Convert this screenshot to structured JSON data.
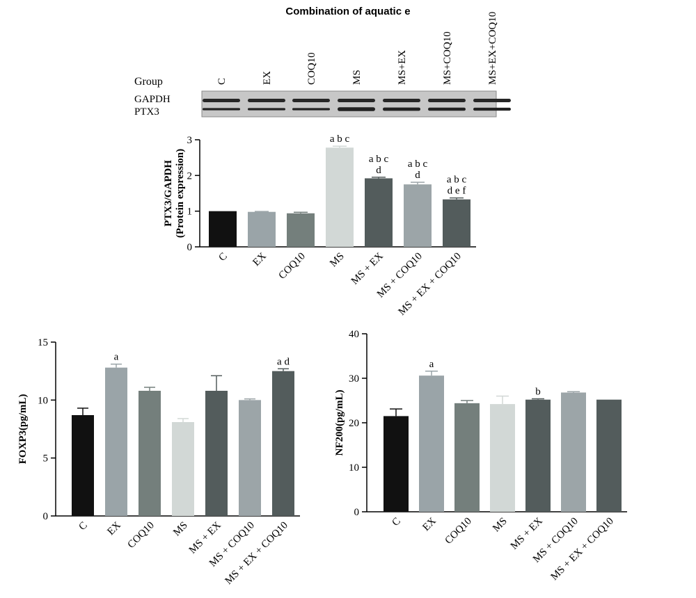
{
  "title": "Combination of aquatic e",
  "blot": {
    "group_label": "Group",
    "row_labels": [
      "GAPDH",
      "PTX3"
    ],
    "lanes": [
      "C",
      "EX",
      "COQ10",
      "MS",
      "MS+EX",
      "MS+COQ10",
      "MS+EX+COQ10"
    ]
  },
  "colors": [
    "#111111",
    "#9aa4a8",
    "#747f7c",
    "#d2d8d6",
    "#535c5c",
    "#9ca5a8",
    "#535c5c"
  ],
  "chart_data": [
    {
      "id": "ptx3",
      "type": "bar",
      "ylabel_lines": [
        "PTX3/GAPDH",
        "(Protein expression)"
      ],
      "categories": [
        "C",
        "EX",
        "COQ10",
        "MS",
        "MS + EX",
        "MS + COQ10",
        "MS + EX + COQ10"
      ],
      "values": [
        1.0,
        0.98,
        0.94,
        2.78,
        1.92,
        1.75,
        1.33
      ],
      "errors": [
        0.0,
        0.01,
        0.03,
        0.04,
        0.03,
        0.06,
        0.04
      ],
      "ylim": [
        0,
        3
      ],
      "yticks": [
        0,
        1,
        2,
        3
      ],
      "annotations": [
        [],
        [],
        [],
        [
          "a b c"
        ],
        [
          "a b c",
          "d"
        ],
        [
          "a b c",
          "d"
        ],
        [
          "a b c",
          "d e f"
        ]
      ]
    },
    {
      "id": "foxp3",
      "type": "bar",
      "ylabel_lines": [
        "FOXP3(pg/mL)"
      ],
      "categories": [
        "C",
        "EX",
        "COQ10",
        "MS",
        "MS + EX",
        "MS + COQ10",
        "MS + EX + COQ10"
      ],
      "values": [
        8.7,
        12.8,
        10.8,
        8.1,
        10.8,
        10.0,
        12.5
      ],
      "errors": [
        0.6,
        0.3,
        0.3,
        0.3,
        1.3,
        0.1,
        0.2
      ],
      "ylim": [
        0,
        15
      ],
      "yticks": [
        0,
        5,
        10,
        15
      ],
      "annotations": [
        [],
        [
          "a"
        ],
        [],
        [],
        [],
        [],
        [
          "a d"
        ]
      ]
    },
    {
      "id": "nf200",
      "type": "bar",
      "ylabel_lines": [
        "NF200(pg/mL)"
      ],
      "categories": [
        "C",
        "EX",
        "COQ10",
        "MS",
        "MS + EX",
        "MS + COQ10",
        "MS + EX + COQ10"
      ],
      "values": [
        21.5,
        30.6,
        24.4,
        24.2,
        25.2,
        26.8,
        25.2
      ],
      "errors": [
        1.6,
        1.0,
        0.6,
        1.8,
        0.2,
        0.2,
        0.0
      ],
      "ylim": [
        0,
        40
      ],
      "yticks": [
        0,
        10,
        20,
        30,
        40
      ],
      "annotations": [
        [],
        [
          "a"
        ],
        [],
        [],
        [
          "b"
        ],
        [],
        []
      ]
    }
  ]
}
